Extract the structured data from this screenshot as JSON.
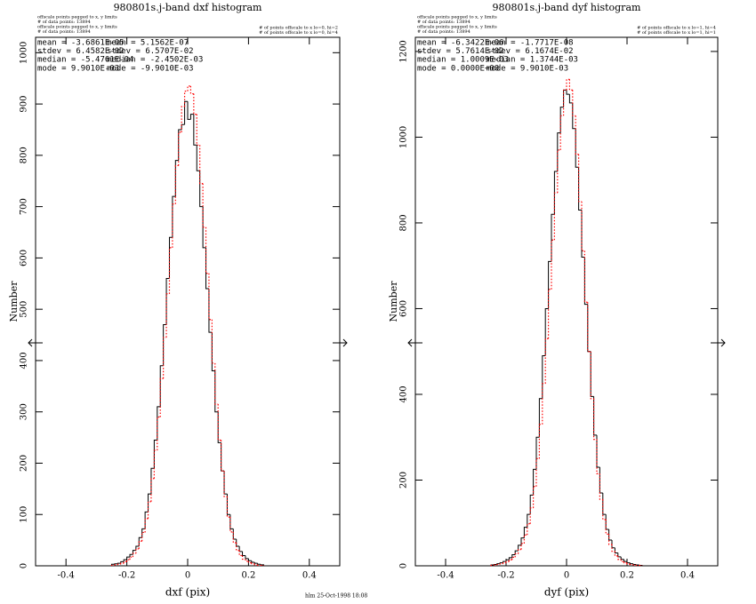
{
  "chart_data": [
    {
      "type": "histogram",
      "title": "980801s.j-band dxf histogram",
      "x_label": "dxf (pix)",
      "y_label": "Number",
      "notes_left": [
        "offscale points pegged to x, y limits",
        "# of data points: 13894",
        "offscale points pegged to x, y limits",
        "# of data points: 13894"
      ],
      "notes_right": [
        "# of points offscale to x lo=0, hi=2",
        "# of points offscale to x lo=0, hi=4"
      ],
      "stats": [
        [
          "mean = -3.6861E-05",
          "mean =  5.1562E-07"
        ],
        [
          "stdev =  6.4582E-02",
          "stdev =  6.5707E-02"
        ],
        [
          "median = -5.4761E-04",
          "median = -2.4502E-03"
        ],
        [
          "mode =  9.9010E-03",
          "mode = -9.9010E-03"
        ]
      ],
      "xlim": [
        -0.5,
        0.5
      ],
      "ylim": [
        0,
        1030
      ],
      "xticks": [
        -0.4,
        -0.2,
        0,
        0.2,
        0.4
      ],
      "yticks": [
        0,
        100,
        200,
        300,
        400,
        500,
        600,
        700,
        800,
        900,
        1000
      ],
      "bins": [
        -0.25,
        -0.24,
        -0.23,
        -0.22,
        -0.21,
        -0.2,
        -0.19,
        -0.18,
        -0.17,
        -0.16,
        -0.15,
        -0.14,
        -0.13,
        -0.12,
        -0.11,
        -0.1,
        -0.09,
        -0.08,
        -0.07,
        -0.06,
        -0.05,
        -0.04,
        -0.03,
        -0.02,
        -0.01,
        0,
        0.01,
        0.02,
        0.03,
        0.04,
        0.05,
        0.06,
        0.07,
        0.08,
        0.09,
        0.1,
        0.11,
        0.12,
        0.13,
        0.14,
        0.15,
        0.16,
        0.17,
        0.18,
        0.19,
        0.2,
        0.21,
        0.22,
        0.23,
        0.24,
        0.25
      ],
      "series": [
        {
          "color": "#000000",
          "style": "solid",
          "values": [
            3,
            4,
            5,
            8,
            12,
            17,
            22,
            30,
            38,
            55,
            72,
            105,
            140,
            190,
            245,
            310,
            390,
            470,
            560,
            640,
            720,
            790,
            850,
            860,
            905,
            870,
            880,
            820,
            770,
            700,
            620,
            540,
            455,
            380,
            300,
            240,
            185,
            140,
            100,
            72,
            52,
            38,
            28,
            20,
            14,
            10,
            7,
            5,
            3,
            2
          ]
        },
        {
          "color": "#ff0000",
          "style": "dotted",
          "values": [
            1,
            2,
            3,
            5,
            8,
            12,
            17,
            24,
            33,
            48,
            65,
            92,
            125,
            170,
            225,
            290,
            365,
            445,
            530,
            620,
            705,
            780,
            845,
            895,
            925,
            935,
            920,
            880,
            820,
            745,
            660,
            570,
            480,
            395,
            315,
            245,
            185,
            135,
            95,
            66,
            45,
            30,
            20,
            13,
            9,
            6,
            4,
            2,
            1,
            1
          ]
        }
      ]
    },
    {
      "type": "histogram",
      "title": "980801s.j-band dyf histogram",
      "x_label": "dyf (pix)",
      "y_label": "Number",
      "notes_left": [
        "offscale points pegged to x, y limits",
        "# of data points: 13894",
        "offscale points pegged to x, y limits",
        "# of data points: 13894"
      ],
      "notes_right": [
        "# of points offscale to x lo=1, hi=4",
        "# of points offscale to x lo=1, hi=1"
      ],
      "stats": [
        [
          "mean = -6.3422E-06",
          "mean = -1.7717E-08"
        ],
        [
          "stdev =  5.7614E-02",
          "stdev =  6.1674E-02"
        ],
        [
          "median =  1.0009E-03",
          "median =  1.3744E-03"
        ],
        [
          "mode =  0.0000E+00",
          "mode =  9.9010E-03"
        ]
      ],
      "xlim": [
        -0.5,
        0.5
      ],
      "ylim": [
        0,
        1233
      ],
      "xticks": [
        -0.4,
        -0.2,
        0,
        0.2,
        0.4
      ],
      "yticks": [
        0,
        200,
        400,
        600,
        800,
        1000,
        1200
      ],
      "bins": [
        -0.25,
        -0.24,
        -0.23,
        -0.22,
        -0.21,
        -0.2,
        -0.19,
        -0.18,
        -0.17,
        -0.16,
        -0.15,
        -0.14,
        -0.13,
        -0.12,
        -0.11,
        -0.1,
        -0.09,
        -0.08,
        -0.07,
        -0.06,
        -0.05,
        -0.04,
        -0.03,
        -0.02,
        -0.01,
        0,
        0.01,
        0.02,
        0.03,
        0.04,
        0.05,
        0.06,
        0.07,
        0.08,
        0.09,
        0.1,
        0.11,
        0.12,
        0.13,
        0.14,
        0.15,
        0.16,
        0.17,
        0.18,
        0.19,
        0.2,
        0.21,
        0.22,
        0.23,
        0.24,
        0.25
      ],
      "series": [
        {
          "color": "#000000",
          "style": "solid",
          "values": [
            2,
            3,
            5,
            7,
            10,
            14,
            19,
            26,
            35,
            48,
            65,
            90,
            120,
            165,
            225,
            300,
            390,
            490,
            600,
            710,
            820,
            920,
            1010,
            1070,
            1110,
            1100,
            1080,
            1020,
            930,
            830,
            720,
            610,
            500,
            395,
            305,
            230,
            170,
            120,
            85,
            60,
            42,
            30,
            21,
            15,
            10,
            7,
            5,
            3,
            2,
            1
          ]
        },
        {
          "color": "#ff0000",
          "style": "dotted",
          "values": [
            1,
            2,
            3,
            5,
            7,
            10,
            14,
            20,
            28,
            38,
            52,
            72,
            98,
            135,
            185,
            250,
            330,
            425,
            530,
            645,
            760,
            870,
            970,
            1050,
            1110,
            1135,
            1110,
            1050,
            960,
            850,
            735,
            615,
            500,
            390,
            295,
            215,
            155,
            108,
            74,
            50,
            34,
            23,
            15,
            10,
            7,
            4,
            3,
            2,
            1,
            1
          ]
        }
      ]
    }
  ],
  "footer": "hlm 25-Oct-1998 18:08"
}
